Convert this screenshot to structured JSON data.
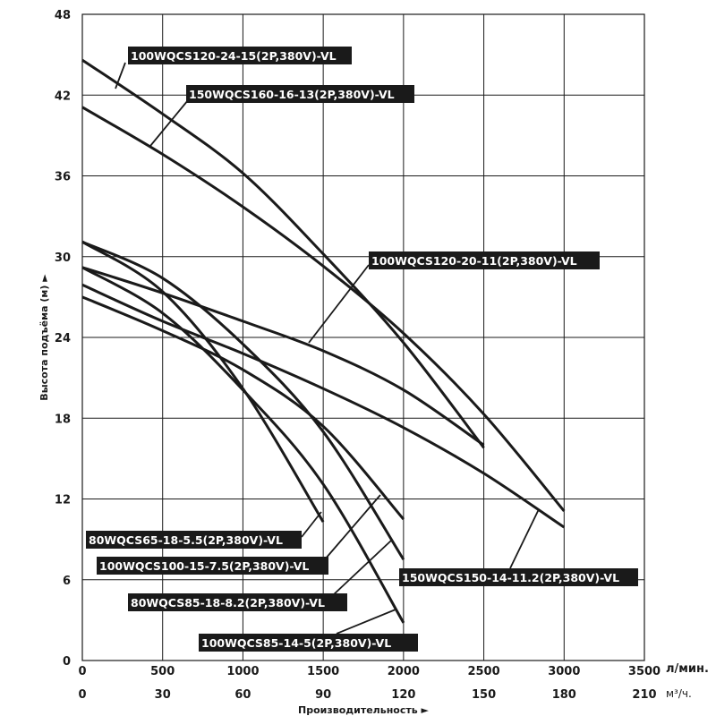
{
  "chart_data": {
    "type": "line",
    "x_axis": {
      "top_ticks": [
        "0",
        "500",
        "1000",
        "1500",
        "2000",
        "2500",
        "3000",
        "3500"
      ],
      "top_unit": "л/мин.",
      "bottom_ticks": [
        "0",
        "30",
        "60",
        "90",
        "120",
        "150",
        "180",
        "210"
      ],
      "bottom_unit": "м³/ч.",
      "title": "Производительность ►",
      "range": [
        0,
        3500
      ]
    },
    "y_axis": {
      "ticks": [
        "0",
        "6",
        "12",
        "18",
        "24",
        "30",
        "36",
        "42",
        "48"
      ],
      "title": "Высота подъёма (м) ►",
      "range": [
        0,
        48
      ]
    },
    "grid": true,
    "series": [
      {
        "name": "100WQCS120-24-15(2P,380V)-VL",
        "x": [
          0,
          500,
          1000,
          1500,
          2000,
          2500
        ],
        "y": [
          44.6,
          40.6,
          36.2,
          30.2,
          23.6,
          15.8
        ]
      },
      {
        "name": "150WQCS160-16-13(2P,380V)-VL",
        "x": [
          0,
          500,
          1000,
          1500,
          2000,
          2500,
          3000
        ],
        "y": [
          41.1,
          37.6,
          33.7,
          29.3,
          24.3,
          18.3,
          11.1
        ]
      },
      {
        "name": "100WQCS120-20-11(2P,380V)-VL",
        "x": [
          0,
          500,
          1000,
          1500,
          2000,
          2500
        ],
        "y": [
          29.2,
          27.3,
          25.2,
          23.0,
          20.1,
          16.0
        ]
      },
      {
        "name": "150WQCS150-14-11.2(2P,380V)-VL",
        "x": [
          0,
          500,
          1000,
          1500,
          2000,
          2500,
          3000
        ],
        "y": [
          27.9,
          25.2,
          22.8,
          20.2,
          17.3,
          13.9,
          9.9
        ]
      },
      {
        "name": "80WQCS65-18-5.5(2P,380V)-VL",
        "x": [
          0,
          500,
          1000,
          1500
        ],
        "y": [
          31.1,
          27.4,
          20.2,
          10.3
        ]
      },
      {
        "name": "100WQCS100-15-7.5(2P,380V)-VL",
        "x": [
          0,
          500,
          1000,
          1500,
          2000
        ],
        "y": [
          27.0,
          24.5,
          21.6,
          17.4,
          10.5
        ]
      },
      {
        "name": "80WQCS85-18-8.2(2P,380V)-VL",
        "x": [
          0,
          500,
          1000,
          1500,
          2000
        ],
        "y": [
          31.1,
          28.4,
          23.5,
          17.0,
          7.5
        ]
      },
      {
        "name": "100WQCS85-14-5(2P,380V)-VL",
        "x": [
          0,
          500,
          1000,
          1500,
          2000
        ],
        "y": [
          29.2,
          25.8,
          20.1,
          13.1,
          2.8
        ]
      }
    ]
  }
}
